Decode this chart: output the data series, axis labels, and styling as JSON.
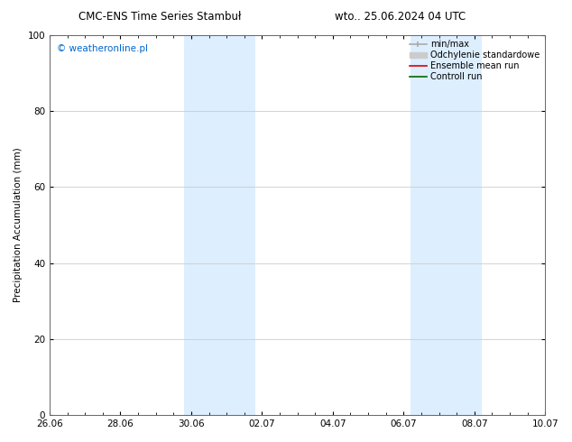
{
  "title_left": "CMC-ENS Time Series Stambuł",
  "title_right": "wto.. 25.06.2024 04 UTC",
  "ylabel": "Precipitation Accumulation (mm)",
  "watermark": "© weatheronline.pl",
  "watermark_color": "#0066cc",
  "ylim": [
    0,
    100
  ],
  "yticks": [
    0,
    20,
    40,
    60,
    80,
    100
  ],
  "xtick_labels": [
    "26.06",
    "28.06",
    "30.06",
    "02.07",
    "04.07",
    "06.07",
    "08.07",
    "10.07"
  ],
  "x_ticks": [
    0,
    2,
    4,
    6,
    8,
    10,
    12,
    14
  ],
  "xlim": [
    0,
    14
  ],
  "shaded_bands": [
    {
      "x_start": 3.8,
      "x_end": 5.8,
      "color": "#ddeeff"
    },
    {
      "x_start": 10.2,
      "x_end": 12.2,
      "color": "#ddeeff"
    }
  ],
  "legend_entries": [
    {
      "label": "min/max",
      "color": "#aaaaaa",
      "lw": 1.2,
      "style": "line_with_cap"
    },
    {
      "label": "Odchylenie standardowe",
      "color": "#cccccc",
      "lw": 5,
      "style": "thick_line"
    },
    {
      "label": "Ensemble mean run",
      "color": "#dd0000",
      "lw": 1.2,
      "style": "line"
    },
    {
      "label": "Controll run",
      "color": "#006600",
      "lw": 1.2,
      "style": "line"
    }
  ],
  "bg_color": "#ffffff",
  "plot_bg_color": "#ffffff",
  "grid_color": "#cccccc",
  "tick_label_fontsize": 7.5,
  "ylabel_fontsize": 7.5,
  "title_fontsize": 8.5,
  "watermark_fontsize": 7.5,
  "legend_fontsize": 7
}
